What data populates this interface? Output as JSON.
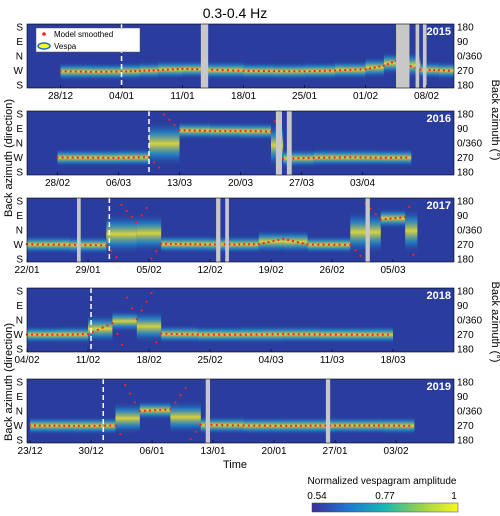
{
  "title": "0.3-0.4 Hz",
  "left_axis_label": "Back azimuth (direction)",
  "right_axis_label": "Back azimuth (°)",
  "time_label": "Time",
  "left_ticks": [
    "S",
    "E",
    "N",
    "W",
    "S"
  ],
  "right_ticks": [
    "180",
    "90",
    "0/360",
    "270",
    "180"
  ],
  "legend": {
    "model": "Model smoothed",
    "vespa": "Vespa"
  },
  "colorbar": {
    "label": "Normalized vespagram amplitude",
    "ticks": [
      "0.54",
      "0.77",
      "1"
    ],
    "min": 0.54,
    "mid": 0.77,
    "max": 1
  },
  "colors": {
    "background": "#2a3d9e",
    "model_points": "#ff1e1e",
    "gaps": "#c8c8c8",
    "dashed": "#ffffff"
  },
  "chart_data": [
    {
      "type": "heatmap",
      "year": "2015",
      "x_ticks": [
        "28/12",
        "04/01",
        "11/01",
        "18/01",
        "25/01",
        "01/02",
        "08/02"
      ],
      "x_start_tick": 0.55,
      "x_span_ticks": 6.45,
      "dashed_at": 1.0,
      "gaps": [
        [
          2.3,
          2.42
        ],
        [
          5.5,
          5.72
        ],
        [
          5.82,
          5.88
        ],
        [
          5.94,
          6.0
        ]
      ],
      "model_track": [
        [
          0,
          265
        ],
        [
          0.5,
          262
        ],
        [
          1,
          263
        ],
        [
          1.3,
          268
        ],
        [
          1.6,
          272
        ],
        [
          2.0,
          280
        ],
        [
          2.4,
          276
        ],
        [
          3,
          268
        ],
        [
          3.5,
          266
        ],
        [
          4,
          265
        ],
        [
          4.5,
          270
        ],
        [
          5.0,
          278
        ],
        [
          5.3,
          300
        ],
        [
          5.5,
          330
        ],
        [
          5.9,
          275
        ],
        [
          6.2,
          272
        ],
        [
          6.45,
          268
        ]
      ]
    },
    {
      "type": "heatmap",
      "year": "2016",
      "x_ticks": [
        "28/02",
        "06/03",
        "13/03",
        "20/03",
        "27/03",
        "03/04"
      ],
      "x_start_tick": 0.5,
      "x_span_ticks": 5.8,
      "dashed_at": 1.5,
      "gaps": [
        [
          3.58,
          3.68
        ],
        [
          3.76,
          3.84
        ]
      ],
      "model_track": [
        [
          0,
          270
        ],
        [
          1.0,
          268
        ],
        [
          1.5,
          272
        ],
        [
          2.0,
          80
        ],
        [
          2.5,
          75
        ],
        [
          3.0,
          75
        ],
        [
          3.5,
          72
        ],
        [
          3.7,
          262
        ],
        [
          4.2,
          268
        ],
        [
          4.8,
          272
        ],
        [
          5.3,
          268
        ],
        [
          5.8,
          270
        ]
      ]
    },
    {
      "type": "heatmap",
      "year": "2017",
      "x_ticks": [
        "22/01",
        "29/01",
        "05/02",
        "12/02",
        "19/02",
        "26/02",
        "05/03"
      ],
      "x_start_tick": 0.0,
      "x_span_ticks": 6.4,
      "dashed_at": 1.35,
      "gaps": [
        [
          0.82,
          0.88
        ],
        [
          3.1,
          3.17
        ],
        [
          3.25,
          3.31
        ],
        [
          5.55,
          5.62
        ]
      ],
      "model_track": [
        [
          0,
          272
        ],
        [
          0.7,
          268
        ],
        [
          1.3,
          265
        ],
        [
          1.8,
          45
        ],
        [
          2.2,
          275
        ],
        [
          3.0,
          270
        ],
        [
          3.8,
          272
        ],
        [
          4.2,
          305
        ],
        [
          4.6,
          270
        ],
        [
          5.3,
          268
        ],
        [
          5.8,
          65
        ],
        [
          6.2,
          80
        ],
        [
          6.4,
          270
        ]
      ]
    },
    {
      "type": "heatmap",
      "year": "2018",
      "x_ticks": [
        "04/02",
        "11/02",
        "18/02",
        "25/02",
        "04/03",
        "11/03",
        "18/03"
      ],
      "x_start_tick": 0.0,
      "x_span_ticks": 6.0,
      "dashed_at": 1.05,
      "gaps": [],
      "model_track": [
        [
          0,
          270
        ],
        [
          0.5,
          268
        ],
        [
          1.0,
          272
        ],
        [
          1.4,
          340
        ],
        [
          1.8,
          5
        ],
        [
          2.2,
          275
        ],
        [
          2.8,
          270
        ],
        [
          3.5,
          268
        ],
        [
          4.2,
          272
        ],
        [
          4.8,
          270
        ],
        [
          5.5,
          268
        ],
        [
          6.0,
          270
        ]
      ]
    },
    {
      "type": "heatmap",
      "year": "2019",
      "x_ticks": [
        "23/12",
        "30/12",
        "06/01",
        "13/01",
        "20/01",
        "27/01",
        "03/02"
      ],
      "x_start_tick": 0.05,
      "x_span_ticks": 6.25,
      "dashed_at": 1.2,
      "gaps": [
        [
          2.88,
          2.95
        ],
        [
          4.85,
          4.92
        ]
      ],
      "model_track": [
        [
          0,
          270
        ],
        [
          0.8,
          268
        ],
        [
          1.4,
          270
        ],
        [
          1.8,
          0
        ],
        [
          2.3,
          10
        ],
        [
          2.8,
          275
        ],
        [
          3.5,
          270
        ],
        [
          4.2,
          268
        ],
        [
          5.0,
          270
        ],
        [
          5.8,
          270
        ],
        [
          6.3,
          268
        ]
      ]
    }
  ]
}
